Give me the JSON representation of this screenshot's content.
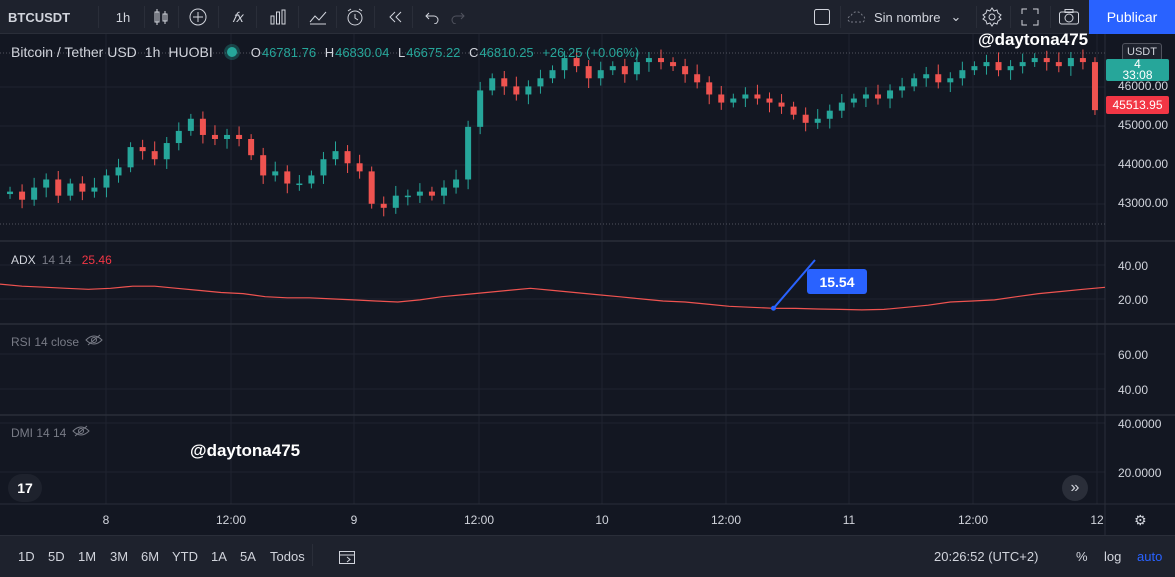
{
  "toolbar": {
    "symbol": "BTCUSDT",
    "interval": "1h",
    "layout_name": "Sin nombre",
    "publish_label": "Publicar",
    "icons": [
      "bar-style-icon",
      "compare-icon",
      "indicators-icon",
      "templates-icon",
      "alert-icon",
      "replay-icon",
      "undo-icon",
      "redo-icon",
      "layout-icon",
      "cloud-icon",
      "settings-icon",
      "fullscreen-icon",
      "camera-icon"
    ]
  },
  "legend": {
    "title": "Bitcoin / Tether USD",
    "interval": "1h",
    "exchange": "HUOBI",
    "o_label": "O",
    "o_value": "46781.76",
    "h_label": "H",
    "h_value": "46830.04",
    "l_label": "L",
    "l_value": "46675.22",
    "c_label": "C",
    "c_value": "46810.25",
    "change": "+26.25 (+0.06%)"
  },
  "watermark": "@daytona475",
  "indicators": {
    "adx": {
      "label": "ADX",
      "params": "14 14",
      "value": "25.46",
      "callout": "15.54"
    },
    "rsi": {
      "label": "RSI 14 close"
    },
    "dmi": {
      "label": "DMI 14 14"
    }
  },
  "price_axis": {
    "currency": "USDT",
    "main_ticks": [
      "46000.00",
      "45000.00",
      "44000.00",
      "43000.00"
    ],
    "countdown": "33:08",
    "current_tag": "4",
    "last_price": "45513.95",
    "adx_ticks": [
      "40.00",
      "20.00"
    ],
    "rsi_ticks": [
      "60.00",
      "40.00"
    ],
    "dmi_ticks": [
      "40.0000",
      "20.0000"
    ]
  },
  "time_axis": [
    "8",
    "12:00",
    "9",
    "12:00",
    "10",
    "12:00",
    "11",
    "12:00",
    "12"
  ],
  "bottombar": {
    "ranges": [
      "1D",
      "5D",
      "1M",
      "3M",
      "6M",
      "YTD",
      "1A",
      "5A",
      "Todos"
    ],
    "clock": "20:26:52 (UTC+2)",
    "percent": "%",
    "log": "log",
    "auto": "auto"
  },
  "colors": {
    "up": "#26a69a",
    "down": "#ef5350",
    "accent": "#2962ff",
    "bg": "#131722"
  },
  "chart_data": {
    "type": "candlestick",
    "up_color": "#26a69a",
    "down_color": "#ef5350",
    "candles_close": [
      43500,
      43300,
      43600,
      43800,
      43400,
      43700,
      43500,
      43600,
      43900,
      44100,
      44600,
      44500,
      44300,
      44700,
      45000,
      45300,
      44900,
      44800,
      44900,
      44800,
      44400,
      43900,
      44000,
      43700,
      43700,
      43900,
      44300,
      44500,
      44200,
      44000,
      43200,
      43100,
      43400,
      43400,
      43500,
      43400,
      43600,
      43800,
      45100,
      46000,
      46300,
      46100,
      45900,
      46100,
      46300,
      46500,
      46800,
      46600,
      46300,
      46500,
      46600,
      46400,
      46700,
      46800,
      46700,
      46600,
      46400,
      46200,
      45900,
      45700,
      45800,
      45900,
      45800,
      45700,
      45600,
      45400,
      45200,
      45300,
      45500,
      45700,
      45800,
      45900,
      45800,
      46000,
      46100,
      46300,
      46400,
      46200,
      46300,
      46500,
      46600,
      46700,
      46500,
      46600,
      46700,
      46800,
      46700,
      46600,
      46800,
      46700,
      45513.95
    ],
    "price_range": [
      42700,
      46900
    ],
    "adx_series": [
      27,
      26,
      25.5,
      25,
      24.5,
      25,
      26,
      26,
      25,
      24,
      23,
      22.5,
      21,
      20.5,
      20.5,
      20,
      19.5,
      19,
      18.5,
      19.5,
      21,
      22,
      23,
      24,
      25,
      24,
      23,
      22,
      21,
      20,
      19,
      18.5,
      17.5,
      16.5,
      16,
      15.54,
      15.5,
      15.2,
      15,
      14.8,
      15,
      16,
      17,
      18.5,
      19,
      19.5,
      21,
      22.5,
      23.5,
      24.5,
      25.46
    ],
    "adx_range": [
      10,
      45
    ]
  }
}
